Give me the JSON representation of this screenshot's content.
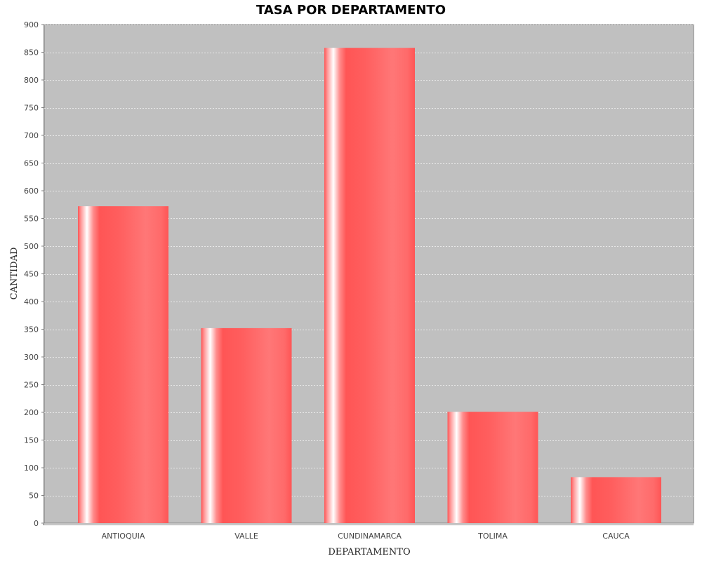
{
  "chart_data": {
    "type": "bar",
    "title": "TASA POR DEPARTAMENTO",
    "xlabel": "DEPARTAMENTO",
    "ylabel": "CANTIDAD",
    "categories": [
      "ANTIOQUIA",
      "VALLE",
      "CUNDINAMARCA",
      "TOLIMA",
      "CAUCA"
    ],
    "values": [
      572,
      352,
      858,
      201,
      83
    ],
    "ylim": [
      0,
      900
    ],
    "yticks": [
      0,
      50,
      100,
      150,
      200,
      250,
      300,
      350,
      400,
      450,
      500,
      550,
      600,
      650,
      700,
      750,
      800,
      850,
      900
    ],
    "grid": true,
    "legend": "none",
    "colors": {
      "bar": "#ff5555",
      "bar_light": "#ff7777",
      "plot_background": "#c0c0c0",
      "gridline": "#ffffff"
    }
  }
}
